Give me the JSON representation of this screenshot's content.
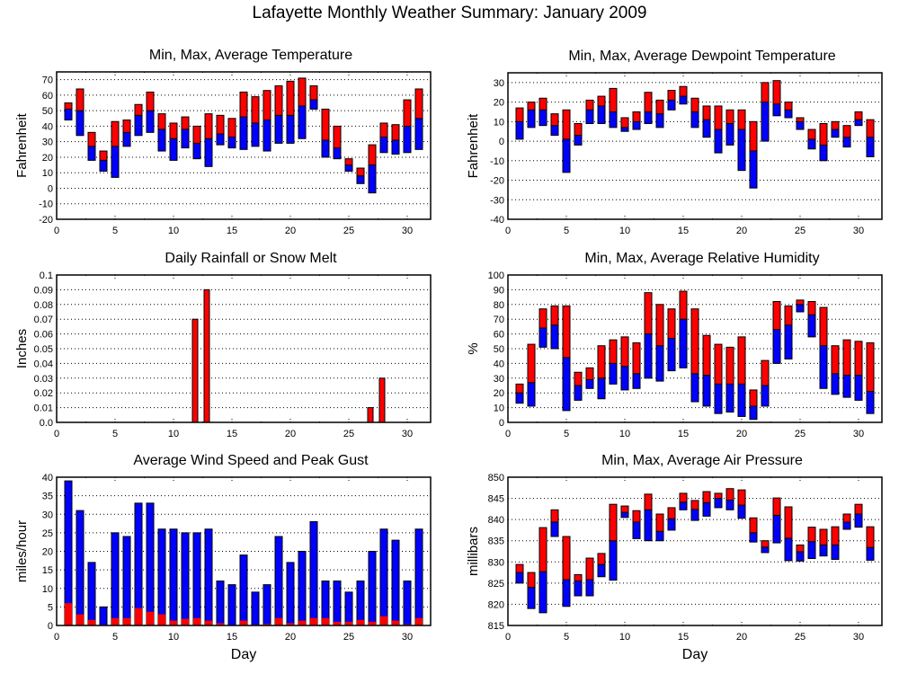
{
  "page_title": "Lafayette Monthly Weather Summary: January 2009",
  "colors": {
    "max_segment": "#ff0000",
    "min_segment": "#0000ff",
    "frame": "#000000",
    "grid": "#000000"
  },
  "chart_data": [
    {
      "id": "temperature",
      "type": "bar",
      "subtype": "floating-range",
      "title": "Min, Max, Average Temperature",
      "xlabel": "",
      "ylabel": "Fahrenheit",
      "xlim": [
        0,
        32
      ],
      "ylim": [
        -20,
        75
      ],
      "xticks": [
        0,
        5,
        10,
        15,
        20,
        25,
        30
      ],
      "yticks": [
        -20,
        -10,
        0,
        10,
        20,
        30,
        40,
        50,
        60,
        70
      ],
      "grid": true,
      "x": [
        1,
        2,
        3,
        4,
        5,
        6,
        7,
        8,
        9,
        10,
        11,
        12,
        13,
        14,
        15,
        16,
        17,
        18,
        19,
        20,
        21,
        22,
        23,
        24,
        25,
        26,
        27,
        28,
        29,
        30,
        31
      ],
      "series": [
        {
          "name": "Min",
          "values": [
            44,
            34,
            18,
            11,
            7,
            27,
            34,
            36,
            24,
            18,
            26,
            19,
            14,
            28,
            26,
            25,
            27,
            24,
            29,
            29,
            32,
            51,
            20,
            19,
            11,
            3,
            -3,
            23,
            22,
            23,
            25
          ]
        },
        {
          "name": "Average",
          "values": [
            51,
            50,
            27,
            18,
            27,
            36,
            47,
            50,
            38,
            32,
            38,
            29,
            32,
            35,
            33,
            46,
            42,
            44,
            47,
            47,
            53,
            57,
            31,
            26,
            15,
            8,
            15,
            33,
            31,
            40,
            45
          ]
        },
        {
          "name": "Max",
          "values": [
            55,
            64,
            36,
            24,
            43,
            44,
            54,
            62,
            48,
            42,
            46,
            40,
            48,
            47,
            45,
            62,
            59,
            63,
            66,
            69,
            71,
            66,
            51,
            40,
            19,
            13,
            28,
            42,
            41,
            57,
            64
          ]
        }
      ]
    },
    {
      "id": "dewpoint",
      "type": "bar",
      "subtype": "floating-range",
      "title": "Min, Max, Average Dewpoint Temperature",
      "xlabel": "",
      "ylabel": "Fahrenheit",
      "xlim": [
        0,
        32
      ],
      "ylim": [
        -40,
        35
      ],
      "xticks": [
        0,
        5,
        10,
        15,
        20,
        25,
        30
      ],
      "yticks": [
        -40,
        -30,
        -20,
        -10,
        0,
        10,
        20,
        30
      ],
      "grid": true,
      "x": [
        1,
        2,
        3,
        4,
        5,
        6,
        7,
        8,
        9,
        10,
        11,
        12,
        13,
        14,
        15,
        16,
        17,
        18,
        19,
        20,
        21,
        22,
        23,
        24,
        25,
        26,
        27,
        28,
        29,
        30,
        31
      ],
      "series": [
        {
          "name": "Min",
          "values": [
            1,
            7,
            8,
            3,
            -16,
            -2,
            9,
            9,
            7,
            5,
            6,
            9,
            7,
            16,
            19,
            7,
            2,
            -6,
            -2,
            -15,
            -24,
            0,
            13,
            12,
            6,
            -4,
            -10,
            2,
            -3,
            8,
            -8
          ]
        },
        {
          "name": "Average",
          "values": [
            10,
            16,
            16,
            8,
            1,
            3,
            16,
            18,
            15,
            7,
            10,
            15,
            14,
            21,
            23,
            15,
            11,
            6,
            9,
            6,
            -5,
            20,
            19,
            16,
            10,
            1,
            -2,
            6,
            2,
            11,
            2
          ]
        },
        {
          "name": "Max",
          "values": [
            17,
            20,
            22,
            14,
            16,
            9,
            21,
            23,
            27,
            12,
            15,
            25,
            21,
            26,
            28,
            22,
            18,
            18,
            16,
            16,
            10,
            30,
            31,
            20,
            12,
            6,
            9,
            10,
            8,
            15,
            11
          ]
        }
      ]
    },
    {
      "id": "rainfall",
      "type": "bar",
      "title": "Daily Rainfall or Snow Melt",
      "xlabel": "",
      "ylabel": "Inches",
      "xlim": [
        0,
        32
      ],
      "ylim": [
        0,
        0.1
      ],
      "xticks": [
        0,
        5,
        10,
        15,
        20,
        25,
        30
      ],
      "yticks": [
        "0.0",
        "0.01",
        "0.02",
        "0.03",
        "0.04",
        "0.05",
        "0.06",
        "0.07",
        "0.08",
        "0.09",
        "0.1"
      ],
      "grid": true,
      "x": [
        1,
        2,
        3,
        4,
        5,
        6,
        7,
        8,
        9,
        10,
        11,
        12,
        13,
        14,
        15,
        16,
        17,
        18,
        19,
        20,
        21,
        22,
        23,
        24,
        25,
        26,
        27,
        28,
        29,
        30,
        31
      ],
      "series": [
        {
          "name": "Rainfall",
          "values": [
            0,
            0,
            0,
            0,
            0,
            0,
            0,
            0,
            0,
            0,
            0,
            0.07,
            0.09,
            0,
            0,
            0,
            0,
            0,
            0,
            0,
            0,
            0,
            0,
            0,
            0,
            0,
            0.01,
            0.03,
            0,
            0,
            0
          ]
        }
      ]
    },
    {
      "id": "humidity",
      "type": "bar",
      "subtype": "floating-range",
      "title": "Min, Max, Average Relative Humidity",
      "xlabel": "",
      "ylabel": "%",
      "xlim": [
        0,
        32
      ],
      "ylim": [
        0,
        100
      ],
      "xticks": [
        0,
        5,
        10,
        15,
        20,
        25,
        30
      ],
      "yticks": [
        0,
        10,
        20,
        30,
        40,
        50,
        60,
        70,
        80,
        90,
        100
      ],
      "grid": true,
      "x": [
        1,
        2,
        3,
        4,
        5,
        6,
        7,
        8,
        9,
        10,
        11,
        12,
        13,
        14,
        15,
        16,
        17,
        18,
        19,
        20,
        21,
        22,
        23,
        24,
        25,
        26,
        27,
        28,
        29,
        30,
        31
      ],
      "series": [
        {
          "name": "Min",
          "values": [
            13,
            11,
            51,
            50,
            8,
            15,
            23,
            16,
            26,
            22,
            23,
            30,
            28,
            35,
            37,
            14,
            11,
            6,
            7,
            4,
            2,
            11,
            40,
            43,
            75,
            58,
            23,
            19,
            17,
            15,
            6
          ]
        },
        {
          "name": "Average",
          "values": [
            20,
            27,
            64,
            66,
            44,
            25,
            29,
            30,
            40,
            38,
            33,
            60,
            52,
            57,
            70,
            33,
            32,
            26,
            26,
            26,
            11,
            25,
            63,
            66,
            80,
            73,
            52,
            33,
            32,
            32,
            21
          ]
        },
        {
          "name": "Max",
          "values": [
            26,
            53,
            77,
            79,
            79,
            34,
            37,
            52,
            56,
            58,
            54,
            88,
            80,
            77,
            89,
            77,
            59,
            53,
            51,
            58,
            22,
            42,
            82,
            79,
            83,
            82,
            78,
            52,
            56,
            55,
            54
          ]
        }
      ]
    },
    {
      "id": "wind",
      "type": "bar",
      "title": "Average Wind Speed and Peak Gust",
      "xlabel": "Day",
      "ylabel": "miles/hour",
      "xlim": [
        0,
        32
      ],
      "ylim": [
        0,
        40
      ],
      "xticks": [
        0,
        5,
        10,
        15,
        20,
        25,
        30
      ],
      "yticks": [
        0,
        5,
        10,
        15,
        20,
        25,
        30,
        35,
        40
      ],
      "grid": true,
      "x": [
        1,
        2,
        3,
        4,
        5,
        6,
        7,
        8,
        9,
        10,
        11,
        12,
        13,
        14,
        15,
        16,
        17,
        18,
        19,
        20,
        21,
        22,
        23,
        24,
        25,
        26,
        27,
        28,
        29,
        30,
        31
      ],
      "series": [
        {
          "name": "Peak Gust",
          "values": [
            39,
            31,
            17,
            5,
            25,
            24,
            33,
            33,
            26,
            26,
            25,
            25,
            26,
            12,
            11,
            19,
            9,
            11,
            24,
            17,
            20,
            28,
            12,
            12,
            9,
            12,
            20,
            26,
            23,
            12,
            26
          ]
        },
        {
          "name": "Average Wind Speed",
          "values": [
            6,
            3,
            1.5,
            0.2,
            2,
            2,
            4.7,
            3.7,
            3,
            1.3,
            1.8,
            2,
            1.3,
            0.6,
            0,
            1.3,
            0.2,
            0.4,
            2,
            0.6,
            1.3,
            2,
            2,
            1,
            1,
            1.5,
            1,
            2.5,
            1.3,
            0.3,
            2
          ]
        }
      ]
    },
    {
      "id": "pressure",
      "type": "bar",
      "subtype": "floating-range",
      "title": "Min, Max, Average Air Pressure",
      "xlabel": "Day",
      "ylabel": "millibars",
      "xlim": [
        0,
        32
      ],
      "ylim": [
        815,
        850
      ],
      "xticks": [
        0,
        5,
        10,
        15,
        20,
        25,
        30
      ],
      "yticks": [
        815,
        820,
        825,
        830,
        835,
        840,
        845,
        850
      ],
      "grid": true,
      "x": [
        1,
        2,
        3,
        4,
        5,
        6,
        7,
        8,
        9,
        10,
        11,
        12,
        13,
        14,
        15,
        16,
        17,
        18,
        19,
        20,
        21,
        22,
        23,
        24,
        25,
        26,
        27,
        28,
        29,
        30,
        31
      ],
      "series": [
        {
          "name": "Min",
          "values": [
            825,
            819,
            818,
            836,
            819.5,
            822,
            822,
            826.5,
            825.7,
            840.5,
            835.5,
            835,
            835,
            837.5,
            842.3,
            839.8,
            840.8,
            842.8,
            842.3,
            840.3,
            834.7,
            832.2,
            834.5,
            830.3,
            830.2,
            830.8,
            831.4,
            830.6,
            837.7,
            838.2,
            830.4
          ]
        },
        {
          "name": "Average",
          "values": [
            827.5,
            824,
            827.7,
            839.4,
            825.8,
            825.5,
            825.8,
            829.4,
            835,
            841.7,
            839.4,
            842.3,
            837.2,
            840.2,
            844.1,
            842.4,
            844,
            845,
            844.6,
            843.4,
            836.9,
            833.5,
            841,
            835.6,
            832.4,
            834.8,
            834,
            834,
            839.4,
            841.3,
            833.4
          ]
        },
        {
          "name": "Max",
          "values": [
            829.4,
            827.5,
            838.1,
            842.3,
            836,
            827,
            830.9,
            832,
            843.6,
            843.2,
            842.1,
            846,
            841.3,
            842.8,
            846.2,
            844.5,
            846.6,
            846.2,
            847.3,
            847,
            840.4,
            835,
            845.1,
            843,
            834,
            838.2,
            837.7,
            838.3,
            841.3,
            843.6,
            838.3
          ]
        }
      ]
    }
  ]
}
